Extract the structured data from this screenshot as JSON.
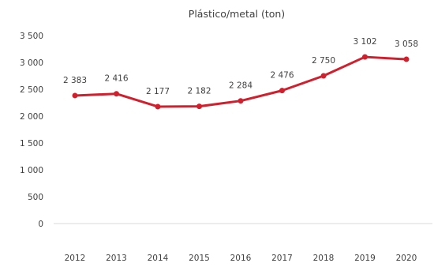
{
  "chart_data": {
    "type": "line",
    "title": "Plástico/metal  (ton)",
    "xlabel": "",
    "ylabel": "",
    "categories": [
      "2012",
      "2013",
      "2014",
      "2015",
      "2016",
      "2017",
      "2018",
      "2019",
      "2020"
    ],
    "series": [
      {
        "values": [
          2383,
          2416,
          2177,
          2182,
          2284,
          2476,
          2750,
          3102,
          3058
        ],
        "data_labels": [
          "2 383",
          "2 416",
          "2 177",
          "2 182",
          "2 284",
          "2 476",
          "2 750",
          "3 102",
          "3 058"
        ],
        "color": "#d0202e"
      }
    ],
    "ylim": [
      0,
      3500
    ],
    "y_ticks": [
      {
        "value": 0,
        "label": "0"
      },
      {
        "value": 500,
        "label": "500"
      },
      {
        "value": 1000,
        "label": "1 000"
      },
      {
        "value": 1500,
        "label": "1 500"
      },
      {
        "value": 2000,
        "label": "2 000"
      },
      {
        "value": 2500,
        "label": "2 500"
      },
      {
        "value": 3000,
        "label": "3 000"
      },
      {
        "value": 3500,
        "label": "3 500"
      }
    ],
    "grid": false,
    "legend": "none"
  }
}
